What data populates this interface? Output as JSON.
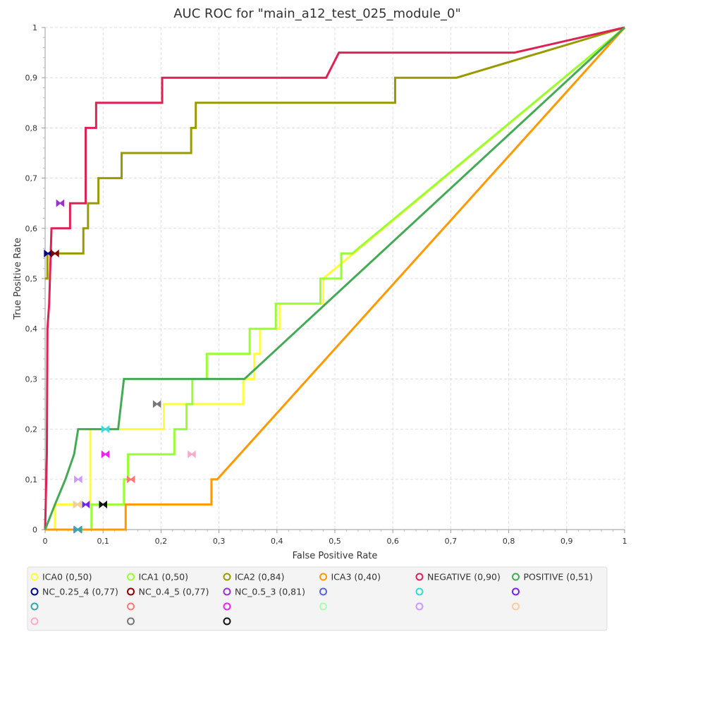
{
  "chart_data": {
    "type": "line",
    "title": "AUC ROC for \"main_a12_test_025_module_0\"",
    "xlabel": "False Positive Rate",
    "ylabel": "True Positive Rate",
    "xlim": [
      0,
      1
    ],
    "ylim": [
      0,
      1
    ],
    "x_ticks": [
      "0",
      "0,1",
      "0,2",
      "0,3",
      "0,4",
      "0,5",
      "0,6",
      "0,7",
      "0,8",
      "0,9",
      "1"
    ],
    "y_ticks": [
      "0",
      "0,1",
      "0,2",
      "0,3",
      "0,4",
      "0,5",
      "0,6",
      "0,7",
      "0,8",
      "0,9",
      "1"
    ],
    "grid": true,
    "legend_position": "bottom",
    "series": [
      {
        "name": "ICA0 (0,50)",
        "color": "#ffff33",
        "points": [
          [
            0,
            0
          ],
          [
            0.017,
            0
          ],
          [
            0.017,
            0.05
          ],
          [
            0.078,
            0.05
          ],
          [
            0.078,
            0.2
          ],
          [
            0.205,
            0.2
          ],
          [
            0.205,
            0.25
          ],
          [
            0.342,
            0.25
          ],
          [
            0.342,
            0.3
          ],
          [
            0.361,
            0.3
          ],
          [
            0.361,
            0.35
          ],
          [
            0.371,
            0.35
          ],
          [
            0.371,
            0.4
          ],
          [
            0.405,
            0.4
          ],
          [
            0.405,
            0.45
          ],
          [
            0.48,
            0.45
          ],
          [
            0.48,
            0.5
          ],
          [
            1,
            1
          ]
        ]
      },
      {
        "name": "ICA1 (0,50)",
        "color": "#99ff33",
        "points": [
          [
            0,
            0
          ],
          [
            0.08,
            0
          ],
          [
            0.08,
            0.05
          ],
          [
            0.136,
            0.05
          ],
          [
            0.136,
            0.1
          ],
          [
            0.143,
            0.1
          ],
          [
            0.143,
            0.15
          ],
          [
            0.223,
            0.15
          ],
          [
            0.223,
            0.2
          ],
          [
            0.244,
            0.2
          ],
          [
            0.244,
            0.25
          ],
          [
            0.254,
            0.25
          ],
          [
            0.254,
            0.3
          ],
          [
            0.279,
            0.3
          ],
          [
            0.279,
            0.35
          ],
          [
            0.353,
            0.35
          ],
          [
            0.353,
            0.4
          ],
          [
            0.398,
            0.4
          ],
          [
            0.398,
            0.45
          ],
          [
            0.475,
            0.45
          ],
          [
            0.475,
            0.5
          ],
          [
            0.511,
            0.5
          ],
          [
            0.511,
            0.55
          ],
          [
            0.53,
            0.55
          ],
          [
            1,
            1
          ]
        ]
      },
      {
        "name": "ICA2 (0,84)",
        "color": "#999900",
        "points": [
          [
            0,
            0.5
          ],
          [
            0.004,
            0.5
          ],
          [
            0.004,
            0.55
          ],
          [
            0.066,
            0.55
          ],
          [
            0.066,
            0.6
          ],
          [
            0.074,
            0.6
          ],
          [
            0.074,
            0.65
          ],
          [
            0.092,
            0.65
          ],
          [
            0.092,
            0.7
          ],
          [
            0.132,
            0.7
          ],
          [
            0.132,
            0.75
          ],
          [
            0.252,
            0.75
          ],
          [
            0.252,
            0.8
          ],
          [
            0.26,
            0.8
          ],
          [
            0.26,
            0.85
          ],
          [
            0.604,
            0.85
          ],
          [
            0.604,
            0.9
          ],
          [
            0.71,
            0.9
          ],
          [
            1,
            1
          ]
        ]
      },
      {
        "name": "ICA3 (0,40)",
        "color": "#ff9900",
        "points": [
          [
            0,
            0
          ],
          [
            0.139,
            0
          ],
          [
            0.139,
            0.05
          ],
          [
            0.287,
            0.05
          ],
          [
            0.287,
            0.1
          ],
          [
            0.297,
            0.1
          ],
          [
            1,
            1
          ]
        ]
      },
      {
        "name": "NEGATIVE (0,90)",
        "color": "#dd2255",
        "points": [
          [
            0,
            0
          ],
          [
            0.003,
            0.15
          ],
          [
            0.004,
            0.4
          ],
          [
            0.007,
            0.45
          ],
          [
            0.011,
            0.6
          ],
          [
            0.043,
            0.6
          ],
          [
            0.043,
            0.65
          ],
          [
            0.07,
            0.65
          ],
          [
            0.07,
            0.8
          ],
          [
            0.088,
            0.8
          ],
          [
            0.088,
            0.85
          ],
          [
            0.202,
            0.85
          ],
          [
            0.202,
            0.9
          ],
          [
            0.485,
            0.9
          ],
          [
            0.507,
            0.95
          ],
          [
            0.81,
            0.95
          ],
          [
            1,
            1
          ]
        ]
      },
      {
        "name": "POSITIVE (0,51)",
        "color": "#44aa55",
        "points": [
          [
            0,
            0
          ],
          [
            0.017,
            0.05
          ],
          [
            0.035,
            0.1
          ],
          [
            0.05,
            0.15
          ],
          [
            0.057,
            0.2
          ],
          [
            0.126,
            0.2
          ],
          [
            0.131,
            0.25
          ],
          [
            0.136,
            0.3
          ],
          [
            0.344,
            0.3
          ],
          [
            1,
            1
          ]
        ]
      }
    ],
    "markers": [
      {
        "name": "NC_0.25_4 (0,77)",
        "color": "#000088",
        "x": 0.005,
        "y": 0.55
      },
      {
        "name": "NC_0.4_5 (0,77)",
        "color": "#880000",
        "x": 0.017,
        "y": 0.55
      },
      {
        "name": "NC_0.5_3 (0,81)",
        "color": "#9933cc",
        "x": 0.026,
        "y": 0.65
      },
      {
        "name": "",
        "color": "#5566dd",
        "x": 0.056,
        "y": 0.0
      },
      {
        "name": "",
        "color": "#33dddd",
        "x": 0.104,
        "y": 0.2
      },
      {
        "name": "",
        "color": "#7722ee",
        "x": 0.07,
        "y": 0.05
      },
      {
        "name": "",
        "color": "#33aaaa",
        "x": 0.057,
        "y": 0.0
      },
      {
        "name": "",
        "color": "#ff7777",
        "x": 0.148,
        "y": 0.1
      },
      {
        "name": "",
        "color": "#ee22ee",
        "x": 0.104,
        "y": 0.15
      },
      {
        "name": "",
        "color": "#aaffaa",
        "x": 0.057,
        "y": 0.05
      },
      {
        "name": "",
        "color": "#cc99ff",
        "x": 0.057,
        "y": 0.1
      },
      {
        "name": "",
        "color": "#ffcc99",
        "x": 0.055,
        "y": 0.05
      },
      {
        "name": "",
        "color": "#ffaacc",
        "x": 0.253,
        "y": 0.15
      },
      {
        "name": "",
        "color": "#777777",
        "x": 0.193,
        "y": 0.25
      },
      {
        "name": "",
        "color": "#111111",
        "x": 0.1,
        "y": 0.05
      }
    ],
    "legend": [
      {
        "label": "ICA0 (0,50)",
        "color": "#ffff33"
      },
      {
        "label": "ICA1 (0,50)",
        "color": "#99ff33"
      },
      {
        "label": "ICA2 (0,84)",
        "color": "#999900"
      },
      {
        "label": "ICA3 (0,40)",
        "color": "#ff9900"
      },
      {
        "label": "NEGATIVE (0,90)",
        "color": "#dd2255"
      },
      {
        "label": "POSITIVE (0,51)",
        "color": "#44aa55"
      },
      {
        "label": "NC_0.25_4 (0,77)",
        "color": "#000088"
      },
      {
        "label": "NC_0.4_5 (0,77)",
        "color": "#880000"
      },
      {
        "label": "NC_0.5_3 (0,81)",
        "color": "#9933cc"
      },
      {
        "label": "",
        "color": "#5566dd"
      },
      {
        "label": "",
        "color": "#33dddd"
      },
      {
        "label": "",
        "color": "#7722ee"
      },
      {
        "label": "",
        "color": "#33aaaa"
      },
      {
        "label": "",
        "color": "#ff7777"
      },
      {
        "label": "",
        "color": "#ee22ee"
      },
      {
        "label": "",
        "color": "#aaffaa"
      },
      {
        "label": "",
        "color": "#cc99ff"
      },
      {
        "label": "",
        "color": "#ffcc99"
      },
      {
        "label": "",
        "color": "#ffaacc"
      },
      {
        "label": "",
        "color": "#777777"
      },
      {
        "label": "",
        "color": "#111111"
      }
    ]
  }
}
